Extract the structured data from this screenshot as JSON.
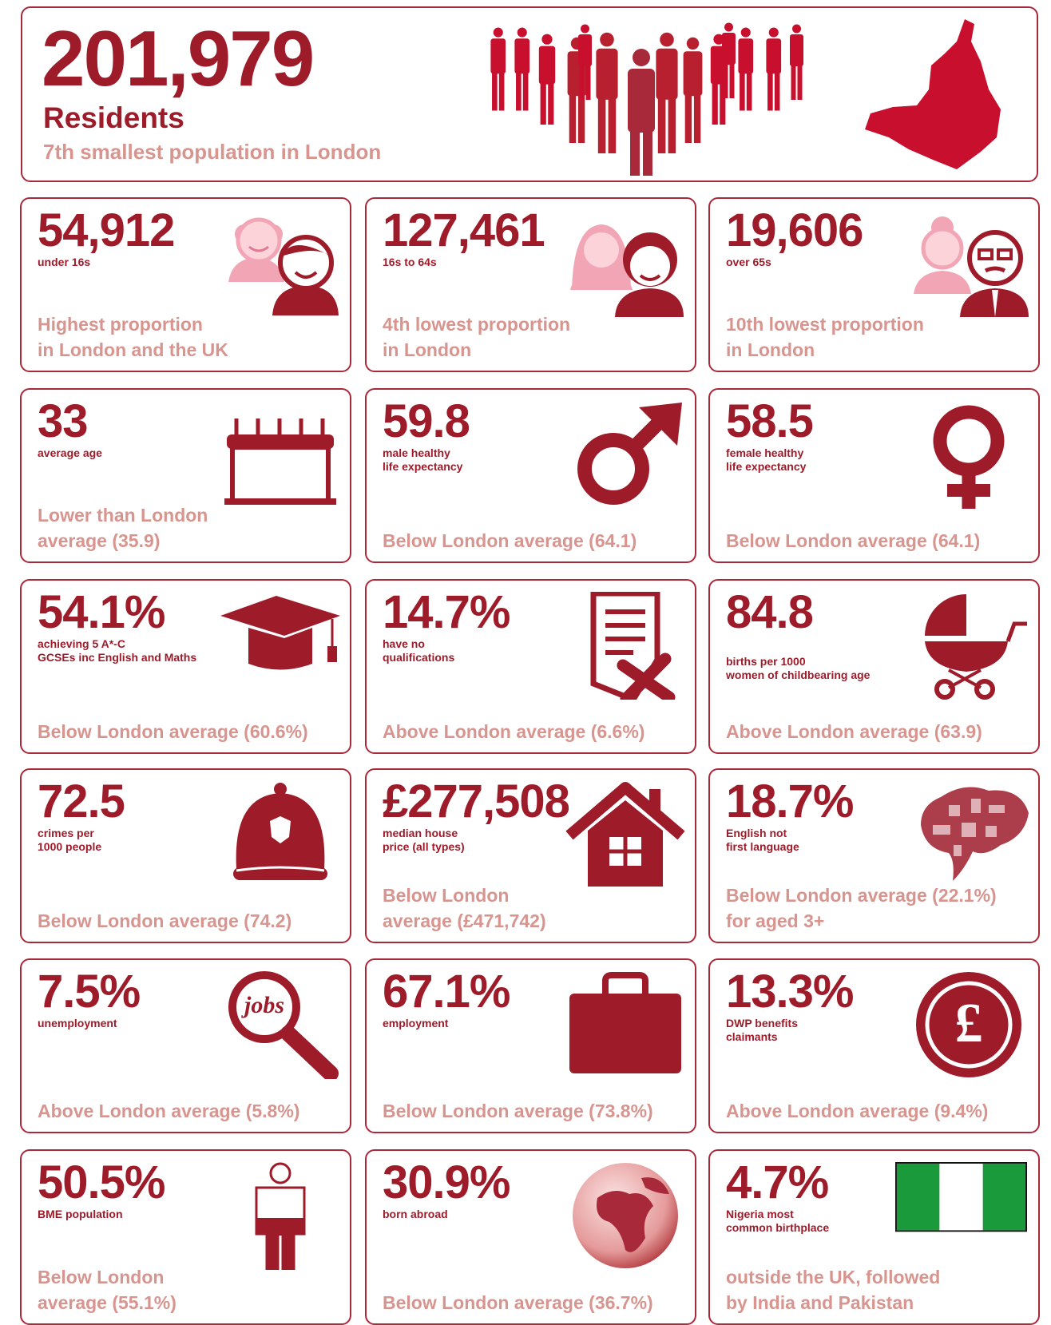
{
  "header": {
    "number": "201,979",
    "label": "Residents",
    "note": "7th smallest population in London"
  },
  "cards": [
    {
      "value": "54,912",
      "label": [
        "under 16s"
      ],
      "note": [
        "Highest proportion",
        "in London and the UK"
      ]
    },
    {
      "value": "127,461",
      "label": [
        "16s to 64s"
      ],
      "note": [
        "4th lowest proportion",
        "in London"
      ]
    },
    {
      "value": "19,606",
      "label": [
        "over 65s"
      ],
      "note": [
        "10th lowest proportion",
        "in London"
      ]
    },
    {
      "value": "33",
      "label": [
        "average age"
      ],
      "note": [
        "Lower than London",
        "average (35.9)"
      ]
    },
    {
      "value": "59.8",
      "label": [
        "male healthy",
        "life expectancy"
      ],
      "note": [
        "Below London average (64.1)"
      ]
    },
    {
      "value": "58.5",
      "label": [
        "female healthy",
        "life expectancy"
      ],
      "note": [
        "Below London average (64.1)"
      ]
    },
    {
      "value": "54.1%",
      "label": [
        "achieving 5 A*-C",
        "GCSEs inc English and Maths"
      ],
      "note": [
        "Below London average (60.6%)"
      ]
    },
    {
      "value": "14.7%",
      "label": [
        "have no",
        "qualifications"
      ],
      "note": [
        "Above London average (6.6%)"
      ]
    },
    {
      "value": "84.8",
      "label": [
        "births per 1000",
        "women of childbearing age"
      ],
      "note": [
        "Above London average (63.9)"
      ]
    },
    {
      "value": "72.5",
      "label": [
        "crimes per",
        "1000 people"
      ],
      "note": [
        "Below London average (74.2)"
      ]
    },
    {
      "value": "£277,508",
      "label": [
        "median house",
        "price (all types)"
      ],
      "note": [
        "Below London",
        "average (£471,742)"
      ]
    },
    {
      "value": "18.7%",
      "label": [
        "English not",
        "first language"
      ],
      "note": [
        "Below London average (22.1%)",
        "for aged 3+"
      ]
    },
    {
      "value": "7.5%",
      "label": [
        "unemployment"
      ],
      "note": [
        "Above London average (5.8%)"
      ],
      "icon_text": "jobs"
    },
    {
      "value": "67.1%",
      "label": [
        "employment"
      ],
      "note": [
        "Below London average (73.8%)"
      ]
    },
    {
      "value": "13.3%",
      "label": [
        "DWP benefits",
        "claimants"
      ],
      "note": [
        "Above London average (9.4%)"
      ],
      "icon_text": "£"
    },
    {
      "value": "50.5%",
      "label": [
        "BME population"
      ],
      "note": [
        "Below London",
        "average (55.1%)"
      ]
    },
    {
      "value": "30.9%",
      "label": [
        "born abroad"
      ],
      "note": [
        "Below London average (36.7%)"
      ]
    },
    {
      "value": "4.7%",
      "label": [
        "Nigeria most",
        "common birthplace"
      ],
      "note": [
        "outside the UK, followed",
        "by India and Pakistan"
      ]
    }
  ]
}
